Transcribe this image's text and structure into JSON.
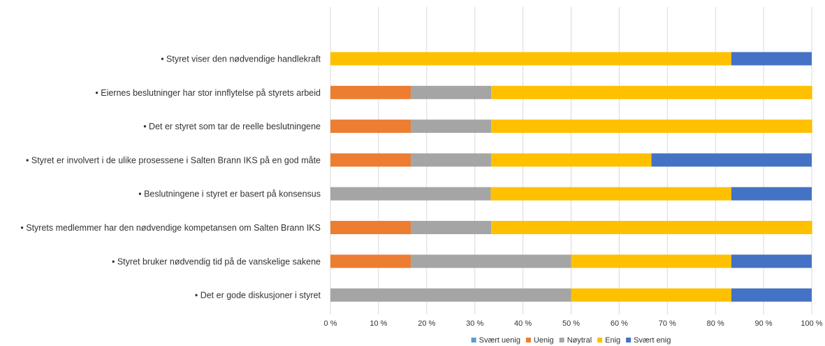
{
  "chart_data": {
    "type": "bar",
    "orientation": "horizontal",
    "stacked": "percent",
    "title": "",
    "xlabel": "",
    "ylabel": "",
    "xlim": [
      0,
      100
    ],
    "x_ticks": [
      "0 %",
      "10 %",
      "20 %",
      "30 %",
      "40 %",
      "50 %",
      "60 %",
      "70 %",
      "80 %",
      "90 %",
      "100 %"
    ],
    "grid": "vertical",
    "legend_position": "bottom",
    "categories": [
      "• Styret viser den nødvendige handlekraft",
      "• Eiernes beslutninger har stor innflytelse på styrets arbeid",
      "• Det er styret som tar de reelle beslutningene",
      "• Styret er involvert i de ulike prosessene i Salten Brann IKS på en god måte",
      "• Beslutningene i styret er basert på konsensus",
      "• Styrets medlemmer har den nødvendige kompetansen om Salten Brann IKS",
      "• Styret bruker nødvendig tid på de vanskelige sakene",
      "• Det er gode diskusjoner i styret"
    ],
    "series": [
      {
        "name": "Svært uenig",
        "color": "#5B9BD5",
        "values": [
          0,
          0,
          0,
          0,
          0,
          0,
          0,
          0
        ]
      },
      {
        "name": "Uenig",
        "color": "#ED7D31",
        "values": [
          0,
          16.7,
          16.7,
          16.7,
          0,
          16.7,
          16.7,
          0
        ]
      },
      {
        "name": "Nøytral",
        "color": "#A5A5A5",
        "values": [
          0,
          16.7,
          16.7,
          16.7,
          33.3,
          16.7,
          33.3,
          50
        ]
      },
      {
        "name": "Enig",
        "color": "#FFC000",
        "values": [
          83.3,
          66.7,
          66.7,
          33.3,
          50,
          66.7,
          33.3,
          33.3
        ]
      },
      {
        "name": "Svært enig",
        "color": "#4472C4",
        "values": [
          16.7,
          0,
          0,
          33.3,
          16.7,
          0,
          16.7,
          16.7
        ]
      }
    ]
  }
}
